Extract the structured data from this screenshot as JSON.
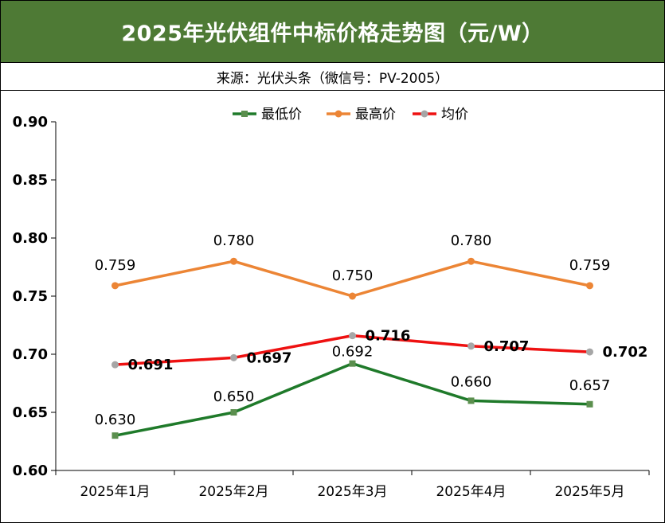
{
  "header": {
    "title": "2025年光伏组件中标价格走势图（元/W）",
    "source": "来源：光伏头条（微信号：PV-2005）"
  },
  "chart_data": {
    "type": "line",
    "categories": [
      "2025年1月",
      "2025年2月",
      "2025年3月",
      "2025年4月",
      "2025年5月"
    ],
    "ylim": [
      0.6,
      0.9
    ],
    "yticks": [
      "0.90",
      "0.85",
      "0.80",
      "0.75",
      "0.70",
      "0.65",
      "0.60"
    ],
    "legend_position": "top",
    "series": [
      {
        "name": "最低价",
        "color": "#1f7a2a",
        "marker": "square",
        "marker_color": "#5b8f4e",
        "values": [
          0.63,
          0.65,
          0.692,
          0.66,
          0.657
        ],
        "labels": [
          "0.630",
          "0.650",
          "0.692",
          "0.660",
          "0.657"
        ]
      },
      {
        "name": "最高价",
        "color": "#ec8535",
        "marker": "circle",
        "marker_color": "#ec8535",
        "values": [
          0.759,
          0.78,
          0.75,
          0.78,
          0.759
        ],
        "labels": [
          "0.759",
          "0.780",
          "0.750",
          "0.780",
          "0.759"
        ]
      },
      {
        "name": "均价",
        "color": "#ee1111",
        "marker": "circle",
        "marker_color": "#a6a6a6",
        "values": [
          0.691,
          0.697,
          0.716,
          0.707,
          0.702
        ],
        "labels": [
          "0.691",
          "0.697",
          "0.716",
          "0.707",
          "0.702"
        ]
      }
    ]
  }
}
